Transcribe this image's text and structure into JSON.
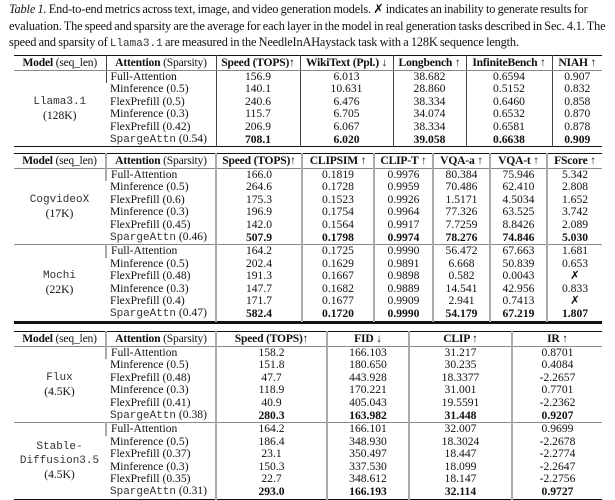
{
  "caption": {
    "label": "Table 1.",
    "text_1": " End-to-end metrics across text, image, and video generation models. ",
    "cross": "✗",
    "text_2": " indicates an inability to generate results for evaluation. The speed and sparsity are the average for each layer in the model in real generation tasks described in Sec. 4.1. The speed and sparsity of ",
    "model_mono": "Llama3.1",
    "text_3": " are measured in the NeedleInAHaystack task with a 128K sequence length."
  },
  "tables": [
    {
      "headers": [
        [
          "Model",
          " (seq_len)"
        ],
        [
          "Attention",
          " (Sparsity)"
        ],
        [
          "Speed (TOPS)↑",
          ""
        ],
        [
          "WikiText (Ppl.) ↓",
          ""
        ],
        [
          "Longbench ↑",
          ""
        ],
        [
          "InfiniteBench ↑",
          ""
        ],
        [
          "NIAH ↑",
          ""
        ]
      ],
      "groups": [
        {
          "model": "Llama3.1",
          "seq_len": "(128K)",
          "rows": [
            {
              "attention": "Full-Attention",
              "sparsity": "",
              "values": [
                "156.9",
                "6.013",
                "38.682",
                "0.6594",
                "0.907"
              ]
            },
            {
              "attention": "Minference",
              "sparsity": "(0.5)",
              "values": [
                "140.1",
                "10.631",
                "28.860",
                "0.5152",
                "0.832"
              ]
            },
            {
              "attention": "FlexPrefill",
              "sparsity": "(0.5)",
              "values": [
                "240.6",
                "6.476",
                "38.334",
                "0.6460",
                "0.858"
              ]
            },
            {
              "attention": "Minference",
              "sparsity": "(0.3)",
              "values": [
                "115.7",
                "6.705",
                "34.074",
                "0.6532",
                "0.870"
              ]
            },
            {
              "attention": "FlexPrefill",
              "sparsity": "(0.42)",
              "values": [
                "206.9",
                "6.067",
                "38.334",
                "0.6581",
                "0.878"
              ]
            },
            {
              "attention": "SpargeAttn",
              "sparsity": "(0.54)",
              "values": [
                "708.1",
                "6.020",
                "39.058",
                "0.6638",
                "0.909"
              ],
              "best": true
            }
          ]
        }
      ]
    },
    {
      "headers": [
        [
          "Model",
          " (seq_len)"
        ],
        [
          "Attention",
          " (Sparsity)"
        ],
        [
          "Speed (TOPS)↑",
          ""
        ],
        [
          "CLIPSIM ↑",
          ""
        ],
        [
          "CLIP-T ↑",
          ""
        ],
        [
          "VQA-a ↑",
          ""
        ],
        [
          "VQA-t ↑",
          ""
        ],
        [
          "FScore ↑",
          ""
        ]
      ],
      "groups": [
        {
          "model": "CogvideoX",
          "seq_len": "(17K)",
          "rows": [
            {
              "attention": "Full-Attention",
              "sparsity": "",
              "values": [
                "166.0",
                "0.1819",
                "0.9976",
                "80.384",
                "75.946",
                "5.342"
              ]
            },
            {
              "attention": "Minference",
              "sparsity": "(0.5)",
              "values": [
                "264.6",
                "0.1728",
                "0.9959",
                "70.486",
                "62.410",
                "2.808"
              ]
            },
            {
              "attention": "FlexPrefill",
              "sparsity": "(0.6)",
              "values": [
                "175.3",
                "0.1523",
                "0.9926",
                "1.5171",
                "4.5034",
                "1.652"
              ]
            },
            {
              "attention": "Minference",
              "sparsity": "(0.3)",
              "values": [
                "196.9",
                "0.1754",
                "0.9964",
                "77.326",
                "63.525",
                "3.742"
              ]
            },
            {
              "attention": "FlexPrefill",
              "sparsity": "(0.45)",
              "values": [
                "142.0",
                "0.1564",
                "0.9917",
                "7.7259",
                "8.8426",
                "2.089"
              ]
            },
            {
              "attention": "SpargeAttn",
              "sparsity": "(0.46)",
              "values": [
                "507.9",
                "0.1798",
                "0.9974",
                "78.276",
                "74.846",
                "5.030"
              ],
              "best": true
            }
          ]
        },
        {
          "model": "Mochi",
          "seq_len": "(22K)",
          "rows": [
            {
              "attention": "Full-Attention",
              "sparsity": "",
              "values": [
                "164.2",
                "0.1725",
                "0.9990",
                "56.472",
                "67.663",
                "1.681"
              ]
            },
            {
              "attention": "Minference",
              "sparsity": "(0.5)",
              "values": [
                "202.4",
                "0.1629",
                "0.9891",
                "6.668",
                "50.839",
                "0.653"
              ]
            },
            {
              "attention": "FlexPrefill",
              "sparsity": "(0.48)",
              "values": [
                "191.3",
                "0.1667",
                "0.9898",
                "0.582",
                "0.0043",
                "✗"
              ]
            },
            {
              "attention": "Minference",
              "sparsity": "(0.3)",
              "values": [
                "147.7",
                "0.1682",
                "0.9889",
                "14.541",
                "42.956",
                "0.833"
              ]
            },
            {
              "attention": "FlexPrefill",
              "sparsity": "(0.4)",
              "values": [
                "171.7",
                "0.1677",
                "0.9909",
                "2.941",
                "0.7413",
                "✗"
              ]
            },
            {
              "attention": "SpargeAttn",
              "sparsity": "(0.47)",
              "values": [
                "582.4",
                "0.1720",
                "0.9990",
                "54.179",
                "67.219",
                "1.807"
              ],
              "best": true
            }
          ]
        }
      ]
    },
    {
      "headers": [
        [
          "Model",
          " (seq_len)"
        ],
        [
          "Attention",
          " (Sparsity)"
        ],
        [
          "Speed (TOPS)↑",
          ""
        ],
        [
          "FID ↓",
          ""
        ],
        [
          "CLIP ↑",
          ""
        ],
        [
          "IR ↑",
          ""
        ]
      ],
      "groups": [
        {
          "model": "Flux",
          "seq_len": "(4.5K)",
          "rows": [
            {
              "attention": "Full-Attention",
              "sparsity": "",
              "values": [
                "158.2",
                "166.103",
                "31.217",
                "0.8701"
              ]
            },
            {
              "attention": "Minference",
              "sparsity": "(0.5)",
              "values": [
                "151.8",
                "180.650",
                "30.235",
                "0.4084"
              ]
            },
            {
              "attention": "FlexPrefill",
              "sparsity": "(0.48)",
              "values": [
                "47.7",
                "443.928",
                "18.3377",
                "-2.2657"
              ]
            },
            {
              "attention": "Minference",
              "sparsity": "(0.3)",
              "values": [
                "118.9",
                "170.221",
                "31.001",
                "0.7701"
              ]
            },
            {
              "attention": "FlexPrefill",
              "sparsity": "(0.41)",
              "values": [
                "40.9",
                "405.043",
                "19.5591",
                "-2.2362"
              ]
            },
            {
              "attention": "SpargeAttn",
              "sparsity": "(0.38)",
              "values": [
                "280.3",
                "163.982",
                "31.448",
                "0.9207"
              ],
              "best": true
            }
          ]
        },
        {
          "model": "Stable-\nDiffusion3.5",
          "seq_len": "(4.5K)",
          "rows": [
            {
              "attention": "Full-Attention",
              "sparsity": "",
              "values": [
                "164.2",
                "166.101",
                "32.007",
                "0.9699"
              ]
            },
            {
              "attention": "Minference",
              "sparsity": "(0.5)",
              "values": [
                "186.4",
                "348.930",
                "18.3024",
                "-2.2678"
              ]
            },
            {
              "attention": "FlexPrefill",
              "sparsity": "(0.37)",
              "values": [
                "23.1",
                "350.497",
                "18.447",
                "-2.2774"
              ]
            },
            {
              "attention": "Minference",
              "sparsity": "(0.3)",
              "values": [
                "150.3",
                "337.530",
                "18.099",
                "-2.2647"
              ]
            },
            {
              "attention": "FlexPrefill",
              "sparsity": "(0.35)",
              "values": [
                "22.7",
                "348.612",
                "18.147",
                "-2.2756"
              ]
            },
            {
              "attention": "SpargeAttn",
              "sparsity": "(0.31)",
              "values": [
                "293.0",
                "166.193",
                "32.114",
                "0.9727"
              ],
              "best": true
            }
          ]
        }
      ]
    }
  ]
}
